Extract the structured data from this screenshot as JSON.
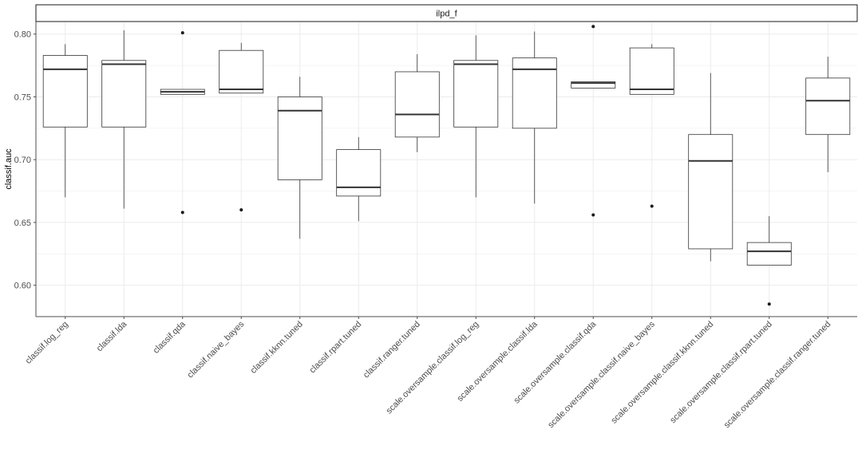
{
  "chart_data": {
    "type": "boxplot",
    "facet_title": "ilpd_f",
    "xlabel": "",
    "ylabel": "classif.auc",
    "ylim": [
      0.575,
      0.81
    ],
    "y_ticks": [
      0.6,
      0.65,
      0.7,
      0.75,
      0.8
    ],
    "y_tick_labels": [
      "0.60",
      "0.65",
      "0.70",
      "0.75",
      "0.80"
    ],
    "grid": true,
    "categories": [
      "classif.log_reg",
      "classif.lda",
      "classif.qda",
      "classif.naive_bayes",
      "classif.kknn.tuned",
      "classif.rpart.tuned",
      "classif.ranger.tuned",
      "scale.oversample.classif.log_reg",
      "scale.oversample.classif.lda",
      "scale.oversample.classif.qda",
      "scale.oversample.classif.naive_bayes",
      "scale.oversample.classif.kknn.tuned",
      "scale.oversample.classif.rpart.tuned",
      "scale.oversample.classif.ranger.tuned"
    ],
    "boxes": [
      {
        "whisker_low": 0.67,
        "q1": 0.726,
        "median": 0.772,
        "q3": 0.783,
        "whisker_high": 0.792,
        "outliers": []
      },
      {
        "whisker_low": 0.661,
        "q1": 0.726,
        "median": 0.776,
        "q3": 0.779,
        "whisker_high": 0.803,
        "outliers": []
      },
      {
        "whisker_low": 0.752,
        "q1": 0.752,
        "median": 0.754,
        "q3": 0.756,
        "whisker_high": 0.756,
        "outliers": [
          0.801,
          0.658
        ]
      },
      {
        "whisker_low": 0.753,
        "q1": 0.753,
        "median": 0.756,
        "q3": 0.787,
        "whisker_high": 0.793,
        "outliers": [
          0.66
        ]
      },
      {
        "whisker_low": 0.637,
        "q1": 0.684,
        "median": 0.739,
        "q3": 0.75,
        "whisker_high": 0.766,
        "outliers": []
      },
      {
        "whisker_low": 0.651,
        "q1": 0.671,
        "median": 0.678,
        "q3": 0.708,
        "whisker_high": 0.718,
        "outliers": []
      },
      {
        "whisker_low": 0.706,
        "q1": 0.718,
        "median": 0.736,
        "q3": 0.77,
        "whisker_high": 0.784,
        "outliers": []
      },
      {
        "whisker_low": 0.67,
        "q1": 0.726,
        "median": 0.776,
        "q3": 0.779,
        "whisker_high": 0.799,
        "outliers": []
      },
      {
        "whisker_low": 0.665,
        "q1": 0.725,
        "median": 0.772,
        "q3": 0.781,
        "whisker_high": 0.802,
        "outliers": []
      },
      {
        "whisker_low": 0.757,
        "q1": 0.757,
        "median": 0.761,
        "q3": 0.762,
        "whisker_high": 0.762,
        "outliers": [
          0.806,
          0.656
        ]
      },
      {
        "whisker_low": 0.752,
        "q1": 0.752,
        "median": 0.756,
        "q3": 0.789,
        "whisker_high": 0.792,
        "outliers": [
          0.663
        ]
      },
      {
        "whisker_low": 0.619,
        "q1": 0.629,
        "median": 0.699,
        "q3": 0.72,
        "whisker_high": 0.769,
        "outliers": []
      },
      {
        "whisker_low": 0.616,
        "q1": 0.616,
        "median": 0.627,
        "q3": 0.634,
        "whisker_high": 0.655,
        "outliers": [
          0.585
        ]
      },
      {
        "whisker_low": 0.69,
        "q1": 0.72,
        "median": 0.747,
        "q3": 0.765,
        "whisker_high": 0.782,
        "outliers": []
      }
    ],
    "colors": {
      "grid": "#ebebeb",
      "box_stroke": "#333333",
      "box_fill": "#ffffff",
      "median": "#333333",
      "outlier": "#1a1a1a",
      "axis": "#4d4d4d"
    }
  }
}
